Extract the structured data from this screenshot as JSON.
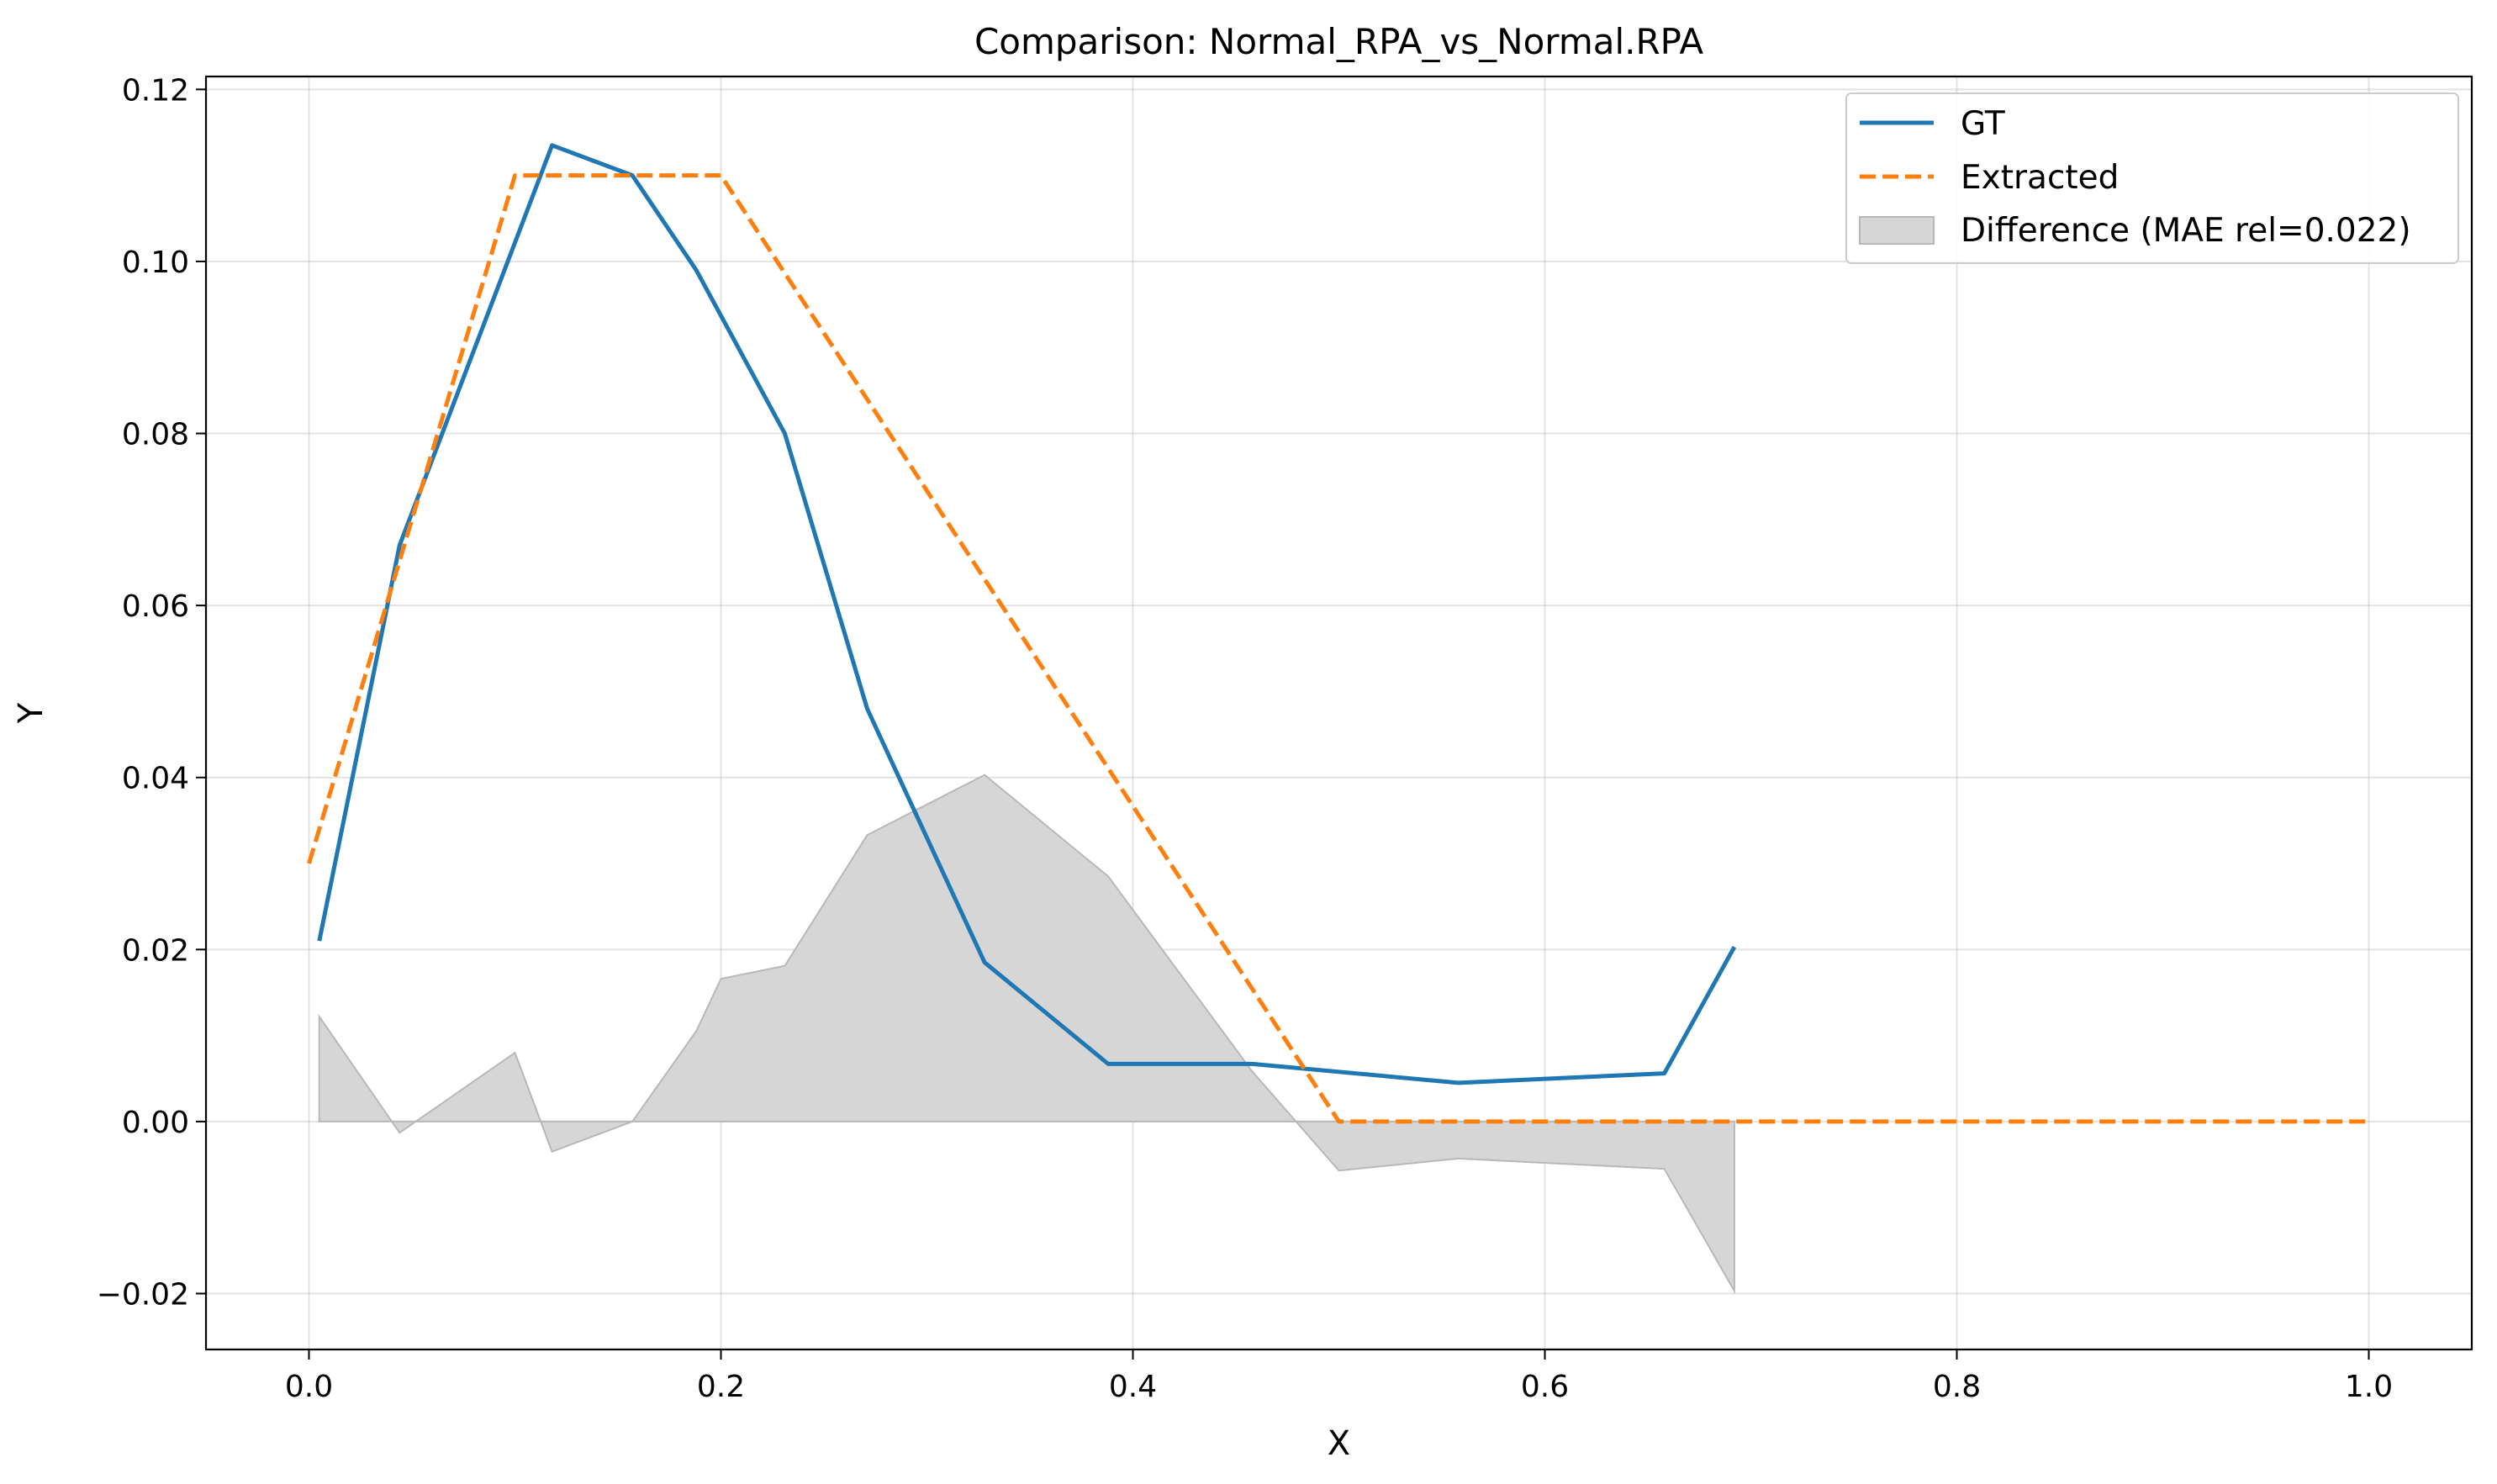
{
  "chart_data": {
    "type": "line",
    "title": "Comparison: Normal_RPA_vs_Normal.RPA",
    "xlabel": "X",
    "ylabel": "Y",
    "xlim": [
      -0.05,
      1.05
    ],
    "ylim": [
      -0.0265,
      0.1215
    ],
    "grid": true,
    "legend_position": "top-right",
    "x_ticks": [
      0.0,
      0.2,
      0.4,
      0.6,
      0.8,
      1.0
    ],
    "x_tick_labels": [
      "0.0",
      "0.2",
      "0.4",
      "0.6",
      "0.8",
      "1.0"
    ],
    "y_ticks": [
      -0.02,
      0.0,
      0.02,
      0.04,
      0.06,
      0.08,
      0.1,
      0.12
    ],
    "y_tick_labels": [
      "−0.02",
      "0.00",
      "0.02",
      "0.04",
      "0.06",
      "0.08",
      "0.10",
      "0.12"
    ],
    "series": [
      {
        "name": "GT",
        "color": "#1f77b4",
        "style": "solid",
        "x": [
          0.005,
          0.044,
          0.118,
          0.157,
          0.188,
          0.231,
          0.271,
          0.328,
          0.388,
          0.458,
          0.558,
          0.658,
          0.692
        ],
        "y": [
          0.021,
          0.067,
          0.1135,
          0.11,
          0.099,
          0.08,
          0.048,
          0.0185,
          0.0067,
          0.0067,
          0.0045,
          0.0056,
          0.0203
        ]
      },
      {
        "name": "Extracted",
        "color": "#ff7f0e",
        "style": "dashed",
        "x": [
          0.0,
          0.1,
          0.2,
          0.5,
          1.0
        ],
        "y": [
          0.03,
          0.11,
          0.11,
          0.0,
          0.0
        ]
      }
    ],
    "difference": {
      "name": "Difference (MAE rel=0.022)",
      "color": "#d6d6d6",
      "edge_color": "#b8b8b8",
      "x": [
        0.005,
        0.044,
        0.1,
        0.118,
        0.157,
        0.188,
        0.2,
        0.231,
        0.271,
        0.328,
        0.388,
        0.458,
        0.5,
        0.558,
        0.658,
        0.692
      ],
      "y": [
        0.0122,
        -0.0013,
        0.008,
        -0.0035,
        0.0,
        0.0105,
        0.0166,
        0.0181,
        0.0333,
        0.0403,
        0.0285,
        0.0058,
        -0.0057,
        -0.0043,
        -0.0055,
        -0.0197
      ]
    }
  }
}
